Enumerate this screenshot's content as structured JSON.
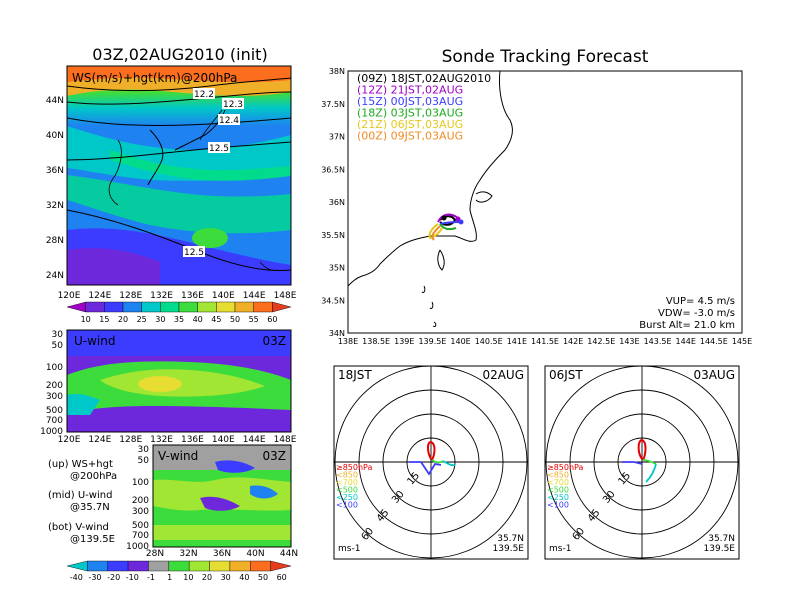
{
  "ws_map": {
    "title": "03Z,02AUG2010 (init)",
    "label": "WS(m/s)+hgt(km)@200hPa",
    "lat_ticks": [
      "44N",
      "40N",
      "36N",
      "32N",
      "28N",
      "24N"
    ],
    "lon_ticks": [
      "120E",
      "124E",
      "128E",
      "132E",
      "136E",
      "140E",
      "144E",
      "148E"
    ],
    "contour_labels": [
      "12.2",
      "12.3",
      "12.4",
      "12.5",
      "12.5"
    ],
    "colorbar": {
      "labels": [
        "10",
        "15",
        "20",
        "25",
        "30",
        "35",
        "40",
        "45",
        "50",
        "55",
        "60"
      ],
      "colors": [
        "#a000c8",
        "#6e28dc",
        "#3c3cff",
        "#1e82f0",
        "#00c8c8",
        "#00dc8c",
        "#3cdc3c",
        "#a0e632",
        "#e6dc32",
        "#f0af28",
        "#fa6e1e",
        "#e63c1e"
      ]
    }
  },
  "u_wind": {
    "label": "U-wind",
    "time": "03Z",
    "p_ticks": [
      "30",
      "50",
      "100",
      "200",
      "300",
      "500",
      "700",
      "1000"
    ],
    "lon_ticks": [
      "120E",
      "124E",
      "128E",
      "132E",
      "136E",
      "140E",
      "144E",
      "148E"
    ]
  },
  "v_wind": {
    "label": "V-wind",
    "time": "03Z",
    "p_ticks": [
      "30",
      "50",
      "100",
      "200",
      "300",
      "500",
      "700",
      "1000"
    ],
    "lat_ticks": [
      "28N",
      "32N",
      "36N",
      "40N",
      "44N"
    ],
    "colorbar": {
      "labels": [
        "-40",
        "-30",
        "-20",
        "-10",
        "-1",
        "1",
        "10",
        "20",
        "30",
        "40",
        "50",
        "60"
      ],
      "colors": [
        "#00c8c8",
        "#1e82f0",
        "#3c3cff",
        "#6e28dc",
        "#a0a0a0",
        "#3cdc3c",
        "#a0e632",
        "#e6dc32",
        "#f0af28",
        "#fa6e1e",
        "#e63c1e"
      ]
    }
  },
  "legend_notes": [
    {
      "l1": "(up) WS+hgt",
      "l2": "@200hPa"
    },
    {
      "l1": "(mid) U-wind",
      "l2": "@35.7N"
    },
    {
      "l1": "(bot) V-wind",
      "l2": "@139.5E"
    }
  ],
  "tracking": {
    "title": "Sonde Tracking Forecast",
    "lat_ticks": [
      "38N",
      "37.5N",
      "37N",
      "36.5N",
      "36N",
      "35.5N",
      "35N",
      "34.5N",
      "34N"
    ],
    "lon_ticks": [
      "138E",
      "138.5E",
      "139E",
      "139.5E",
      "140E",
      "140.5E",
      "141E",
      "141.5E",
      "142E",
      "142.5E",
      "143E",
      "143.5E",
      "144E",
      "144.5E",
      "145E"
    ],
    "launches": [
      {
        "text": "(09Z) 18JST,02AUG2010",
        "color": "#000000"
      },
      {
        "text": "(12Z) 21JST,02AUG",
        "color": "#a000c8"
      },
      {
        "text": "(15Z) 00JST,03AUG",
        "color": "#3c3cff"
      },
      {
        "text": "(18Z) 03JST,03AUG",
        "color": "#1eaa1e"
      },
      {
        "text": "(21Z) 06JST,03AUG",
        "color": "#e6c81e"
      },
      {
        "text": "(00Z) 09JST,03AUG",
        "color": "#f08c28"
      }
    ],
    "params": {
      "vup": "VUP= 4.5 m/s",
      "vdw": "VDW= -3.0 m/s",
      "burst": "Burst Alt= 21.0 km"
    }
  },
  "hodo_left": {
    "time": "18JST",
    "date": "02AUG",
    "rings": [
      "15",
      "30",
      "45",
      "60"
    ],
    "levels": [
      {
        "text": "≥850hPa",
        "color": "#e60000"
      },
      {
        "text": "<850",
        "color": "#f0af28"
      },
      {
        "text": "<700",
        "color": "#e6dc32"
      },
      {
        "text": "<500",
        "color": "#3cdc3c"
      },
      {
        "text": "<250",
        "color": "#00c8c8"
      },
      {
        "text": "<100",
        "color": "#3c3cff"
      }
    ],
    "units": "ms-1",
    "lat": "35.7N",
    "lon": "139.5E"
  },
  "hodo_right": {
    "time": "06JST",
    "date": "03AUG",
    "rings": [
      "15",
      "30",
      "45",
      "60"
    ],
    "levels": [
      {
        "text": "≥850hPa",
        "color": "#e60000"
      },
      {
        "text": "<850",
        "color": "#f0af28"
      },
      {
        "text": "<700",
        "color": "#e6dc32"
      },
      {
        "text": "<500",
        "color": "#3cdc3c"
      },
      {
        "text": "<250",
        "color": "#00c8c8"
      },
      {
        "text": "<100",
        "color": "#3c3cff"
      }
    ],
    "units": "ms-1",
    "lat": "35.7N",
    "lon": "139.5E"
  }
}
